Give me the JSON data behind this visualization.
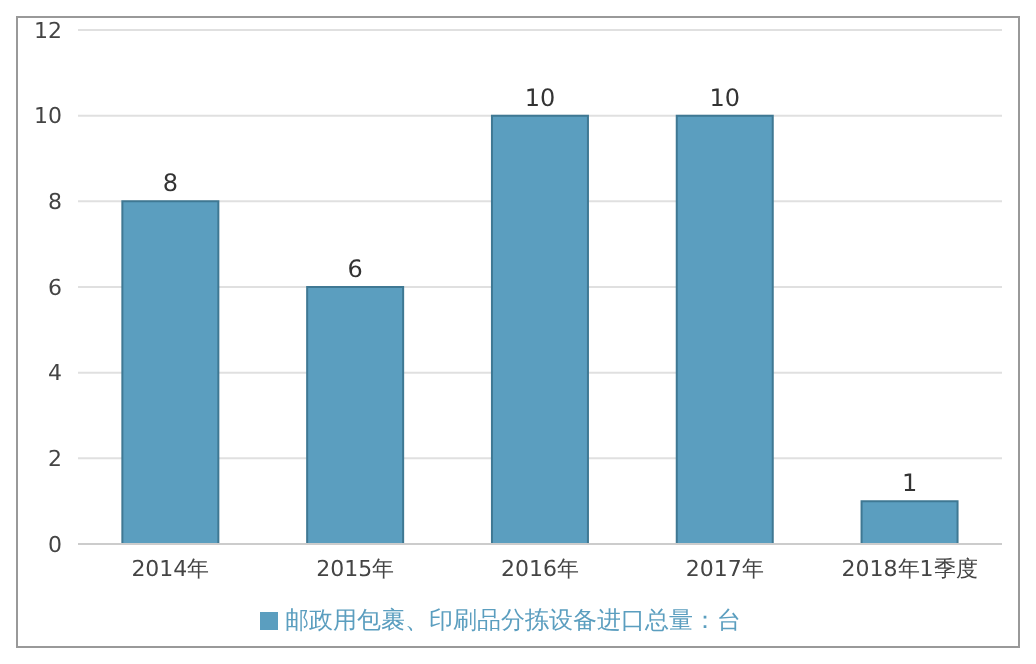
{
  "chart_data": {
    "type": "bar",
    "categories": [
      "2014年",
      "2015年",
      "2016年",
      "2017年",
      "2018年1季度"
    ],
    "series": [
      {
        "name": "邮政用包裹、印刷品分拣设备进口总量：台",
        "color": "#5b9ebf",
        "values": [
          8,
          6,
          10,
          10,
          1
        ]
      }
    ],
    "ylim": [
      0,
      12
    ],
    "yticks": [
      0,
      2,
      4,
      6,
      8,
      10,
      12
    ],
    "grid": "y",
    "legend": "bottom",
    "data_labels": true
  }
}
